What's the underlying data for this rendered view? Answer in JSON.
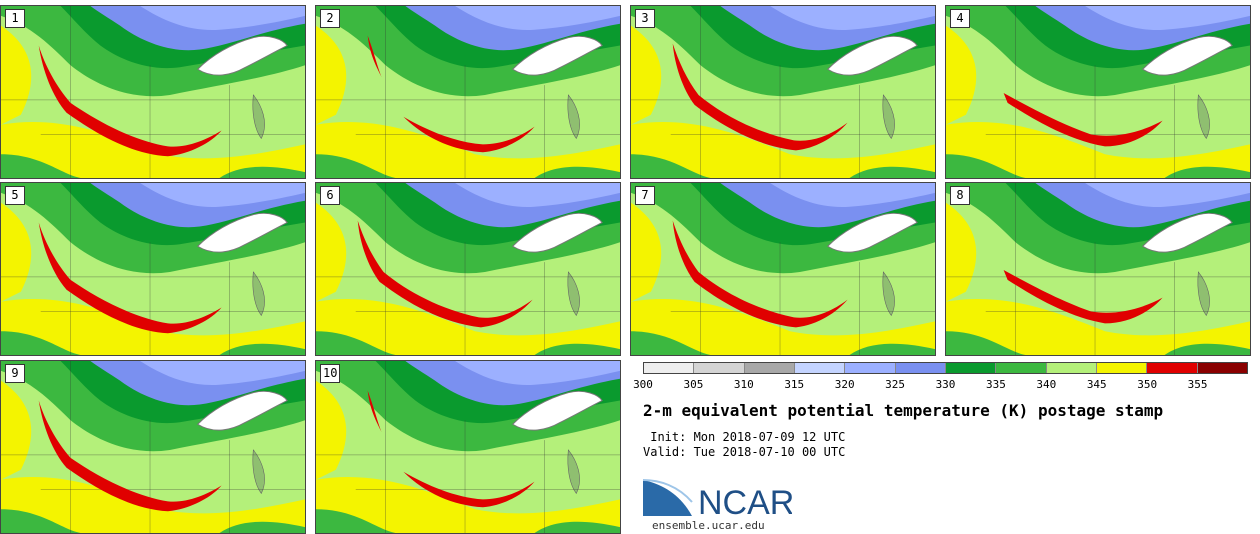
{
  "panels": [
    {
      "label": "1"
    },
    {
      "label": "2"
    },
    {
      "label": "3"
    },
    {
      "label": "4"
    },
    {
      "label": "5"
    },
    {
      "label": "6"
    },
    {
      "label": "7"
    },
    {
      "label": "8"
    },
    {
      "label": "9"
    },
    {
      "label": "10"
    }
  ],
  "legend": {
    "ticks": [
      "300",
      "305",
      "310",
      "315",
      "320",
      "325",
      "330",
      "335",
      "340",
      "345",
      "350",
      "355"
    ],
    "colors": [
      "#eeeeee",
      "#d4d4d4",
      "#a8a8a8",
      "#c4d4ff",
      "#9cb0ff",
      "#7a90f0",
      "#0a9a2e",
      "#3cb840",
      "#b4f07a",
      "#f4f400",
      "#e00000",
      "#8a0000"
    ]
  },
  "title": "2-m equivalent potential temperature (K) postage stamp",
  "init_text": " Init: Mon 2018-07-09 12 UTC",
  "valid_text": "Valid: Tue 2018-07-10 00 UTC",
  "logo": {
    "text": "NCAR",
    "url": "ensemble.ucar.edu"
  }
}
